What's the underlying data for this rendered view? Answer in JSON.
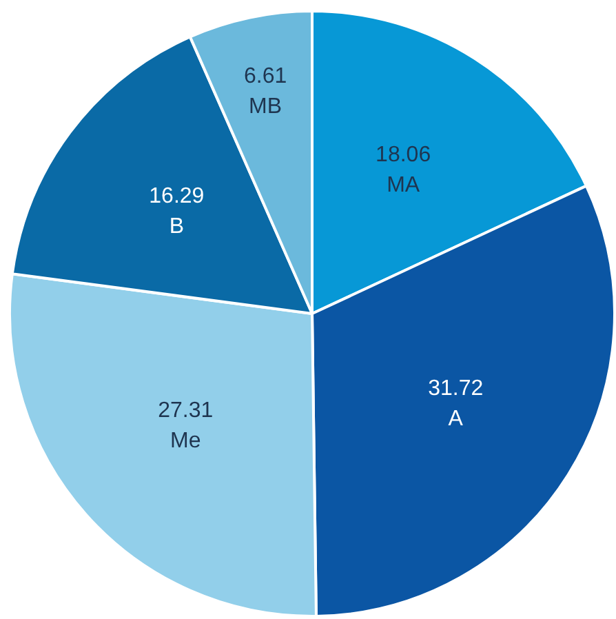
{
  "chart_data": {
    "type": "pie",
    "categories": [
      "MA",
      "A",
      "Me",
      "B",
      "MB"
    ],
    "values": [
      18.06,
      31.72,
      27.31,
      16.29,
      6.61
    ],
    "colors": [
      "#0798d6",
      "#0b56a4",
      "#92cfea",
      "#0a6aa6",
      "#6bb9dc"
    ],
    "data_labels": true,
    "legend": false
  }
}
